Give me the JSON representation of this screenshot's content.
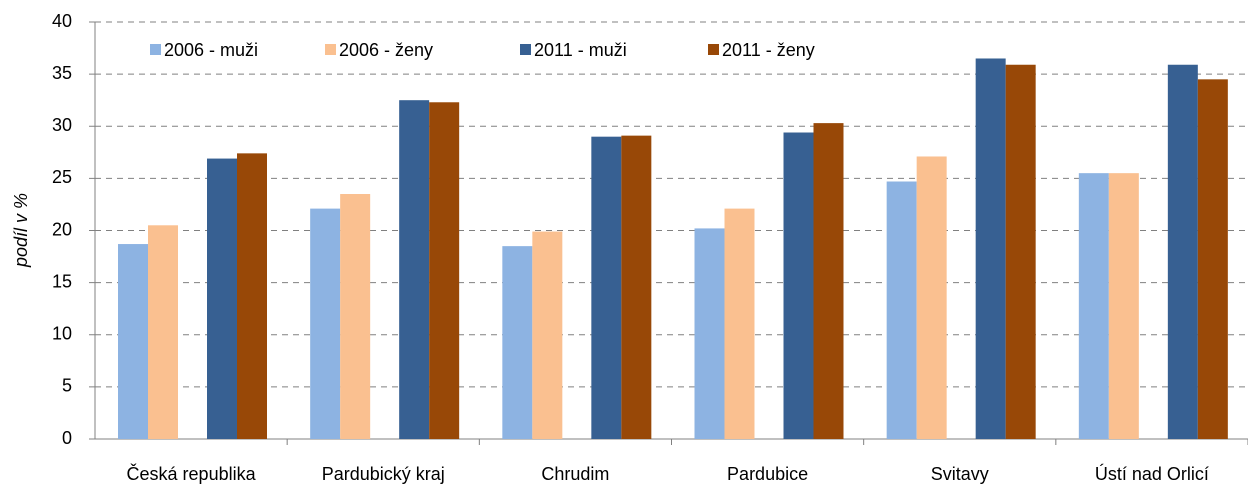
{
  "chart_data": {
    "type": "bar",
    "y_label": "podíl v %",
    "categories": [
      "Česká republika",
      "Pardubický kraj",
      "Chrudim",
      "Pardubice",
      "Svitavy",
      "Ústí nad Orlicí"
    ],
    "series": [
      {
        "name": "2006 - muži",
        "color": "#8db3e2",
        "values": [
          18.7,
          22.1,
          18.5,
          20.2,
          24.7,
          25.5
        ]
      },
      {
        "name": "2006 - ženy",
        "color": "#fac090",
        "values": [
          20.5,
          23.5,
          19.9,
          22.1,
          27.1,
          25.5
        ]
      },
      {
        "name": "2011 - muži",
        "color": "#376092",
        "values": [
          26.9,
          32.5,
          29.0,
          29.4,
          36.5,
          35.9
        ]
      },
      {
        "name": "2011 - ženy",
        "color": "#984807",
        "values": [
          27.4,
          32.3,
          29.1,
          30.3,
          35.9,
          34.5
        ]
      }
    ],
    "ylim": [
      0,
      40
    ],
    "yticks": [
      0,
      5,
      10,
      15,
      20,
      25,
      30,
      35,
      40
    ],
    "grid": true,
    "legend": "top-left"
  }
}
